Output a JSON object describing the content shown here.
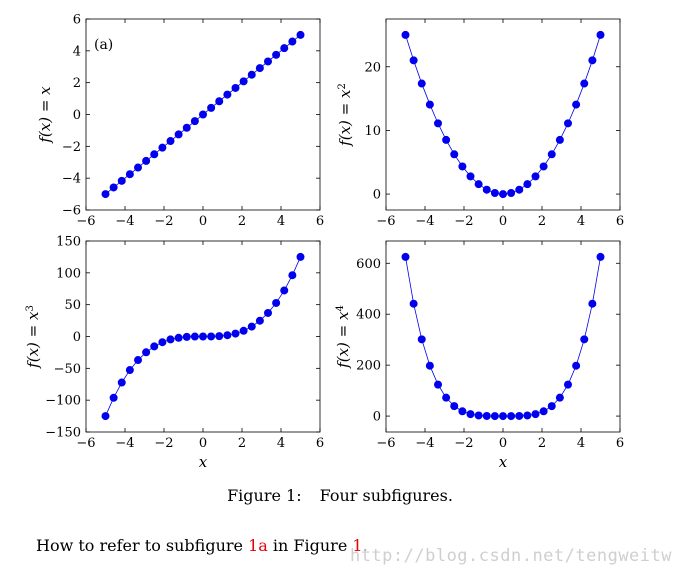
{
  "chart_data": [
    {
      "type": "line",
      "label": "(a)",
      "ylabel": "f(x) = x",
      "xlabel": "",
      "xlim": [
        -6,
        6
      ],
      "ylim": [
        -6,
        6
      ],
      "xticks": [
        -6,
        -4,
        -2,
        0,
        2,
        4,
        6
      ],
      "yticks": [
        -6,
        -4,
        -2,
        0,
        2,
        4,
        6
      ],
      "exponent": 1,
      "x": [
        -5,
        -4.583,
        -4.167,
        -3.75,
        -3.333,
        -2.917,
        -2.5,
        -2.083,
        -1.667,
        -1.25,
        -0.833,
        -0.417,
        0,
        0.417,
        0.833,
        1.25,
        1.667,
        2.083,
        2.5,
        2.917,
        3.333,
        3.75,
        4.167,
        4.583,
        5
      ],
      "y": [
        -5,
        -4.583,
        -4.167,
        -3.75,
        -3.333,
        -2.917,
        -2.5,
        -2.083,
        -1.667,
        -1.25,
        -0.833,
        -0.417,
        0,
        0.417,
        0.833,
        1.25,
        1.667,
        2.083,
        2.5,
        2.917,
        3.333,
        3.75,
        4.167,
        4.583,
        5
      ]
    },
    {
      "type": "line",
      "ylabel": "f(x) = x",
      "ylabel_sup": "2",
      "xlabel": "",
      "xlim": [
        -6,
        6
      ],
      "ylim": [
        -2.5,
        27.5
      ],
      "xticks": [
        -6,
        -4,
        -2,
        0,
        2,
        4,
        6
      ],
      "yticks": [
        0,
        10,
        20
      ],
      "exponent": 2,
      "x": [
        -5,
        -4.583,
        -4.167,
        -3.75,
        -3.333,
        -2.917,
        -2.5,
        -2.083,
        -1.667,
        -1.25,
        -0.833,
        -0.417,
        0,
        0.417,
        0.833,
        1.25,
        1.667,
        2.083,
        2.5,
        2.917,
        3.333,
        3.75,
        4.167,
        4.583,
        5
      ],
      "y": [
        25,
        21.01,
        17.36,
        14.06,
        11.11,
        8.51,
        6.25,
        4.34,
        2.78,
        1.56,
        0.69,
        0.17,
        0,
        0.17,
        0.69,
        1.56,
        2.78,
        4.34,
        6.25,
        8.51,
        11.11,
        14.06,
        17.36,
        21.01,
        25
      ]
    },
    {
      "type": "line",
      "ylabel": "f(x) = x",
      "ylabel_sup": "3",
      "xlabel": "x",
      "xlim": [
        -6,
        6
      ],
      "ylim": [
        -150,
        150
      ],
      "xticks": [
        -6,
        -4,
        -2,
        0,
        2,
        4,
        6
      ],
      "yticks": [
        -150,
        -100,
        -50,
        0,
        50,
        100,
        150
      ],
      "exponent": 3,
      "x": [
        -5,
        -4.583,
        -4.167,
        -3.75,
        -3.333,
        -2.917,
        -2.5,
        -2.083,
        -1.667,
        -1.25,
        -0.833,
        -0.417,
        0,
        0.417,
        0.833,
        1.25,
        1.667,
        2.083,
        2.5,
        2.917,
        3.333,
        3.75,
        4.167,
        4.583,
        5
      ],
      "y": [
        -125,
        -96.3,
        -72.3,
        -52.7,
        -37.0,
        -24.8,
        -15.6,
        -9.0,
        -4.6,
        -2.0,
        -0.58,
        -0.07,
        0,
        0.07,
        0.58,
        2.0,
        4.6,
        9.0,
        15.6,
        24.8,
        37.0,
        52.7,
        72.3,
        96.3,
        125
      ]
    },
    {
      "type": "line",
      "ylabel": "f(x) = x",
      "ylabel_sup": "4",
      "xlabel": "x",
      "xlim": [
        -6,
        6
      ],
      "ylim": [
        -62.5,
        687.5
      ],
      "xticks": [
        -6,
        -4,
        -2,
        0,
        2,
        4,
        6
      ],
      "yticks": [
        0,
        200,
        400,
        600
      ],
      "exponent": 4,
      "x": [
        -5,
        -4.583,
        -4.167,
        -3.75,
        -3.333,
        -2.917,
        -2.5,
        -2.083,
        -1.667,
        -1.25,
        -0.833,
        -0.417,
        0,
        0.417,
        0.833,
        1.25,
        1.667,
        2.083,
        2.5,
        2.917,
        3.333,
        3.75,
        4.167,
        4.583,
        5
      ],
      "y": [
        625,
        441.2,
        301.4,
        197.8,
        123.5,
        72.4,
        39.1,
        18.8,
        7.7,
        2.4,
        0.48,
        0.03,
        0,
        0.03,
        0.48,
        2.4,
        7.7,
        18.8,
        39.1,
        72.4,
        123.5,
        197.8,
        301.4,
        441.2,
        625
      ]
    }
  ],
  "colors": {
    "series": "#0000ee",
    "marker": "#0000ee",
    "axis": "#000000",
    "reference": "#e8000b",
    "watermark": "#cfcfcf"
  },
  "caption": {
    "label": "Figure 1:",
    "text": "Four subfigures."
  },
  "body": {
    "before": "How to refer to subfigure ",
    "ref1": "1a",
    "middle": " in Figure ",
    "ref2": "1",
    "after": "."
  },
  "watermark": "http://blog.csdn.net/tengweitw"
}
